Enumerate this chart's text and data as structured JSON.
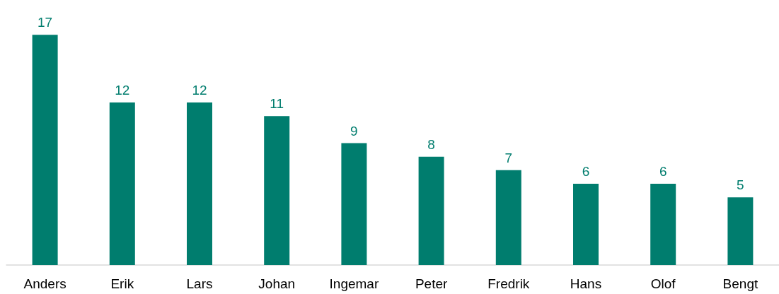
{
  "chart_data": {
    "type": "bar",
    "categories": [
      "Anders",
      "Erik",
      "Lars",
      "Johan",
      "Ingemar",
      "Peter",
      "Fredrik",
      "Hans",
      "Olof",
      "Bengt"
    ],
    "values": [
      17,
      12,
      12,
      11,
      9,
      8,
      7,
      6,
      6,
      5
    ],
    "color": "#007d6e",
    "data_labels": true,
    "grid": false
  }
}
